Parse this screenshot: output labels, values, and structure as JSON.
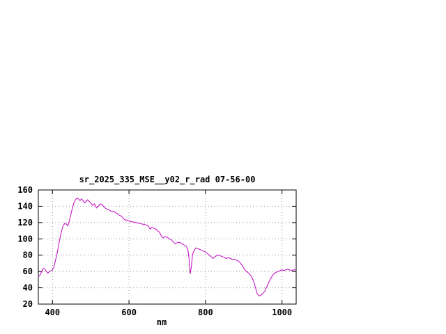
{
  "chart_data": {
    "type": "line",
    "title": "sr_2025_335_MSE__y02_r_rad 07-56-00",
    "xlabel": "nm",
    "ylabel": "",
    "xlim": [
      363,
      1037
    ],
    "ylim": [
      20,
      160
    ],
    "xticks": [
      400,
      600,
      800,
      1000
    ],
    "yticks": [
      20,
      40,
      60,
      80,
      100,
      120,
      140,
      160
    ],
    "grid": true,
    "legend": "none",
    "series_color": "#c000c0",
    "grid_color": "#9a9a9a",
    "axis_color": "#000000",
    "background_color": "#ffffff",
    "points": [
      [
        365,
        54
      ],
      [
        368,
        56
      ],
      [
        372,
        60
      ],
      [
        376,
        64
      ],
      [
        380,
        63
      ],
      [
        384,
        60
      ],
      [
        388,
        58
      ],
      [
        392,
        60
      ],
      [
        396,
        61
      ],
      [
        400,
        62
      ],
      [
        404,
        66
      ],
      [
        408,
        74
      ],
      [
        412,
        82
      ],
      [
        416,
        92
      ],
      [
        420,
        102
      ],
      [
        424,
        110
      ],
      [
        428,
        116
      ],
      [
        432,
        119
      ],
      [
        436,
        118
      ],
      [
        440,
        116
      ],
      [
        444,
        122
      ],
      [
        448,
        130
      ],
      [
        452,
        138
      ],
      [
        456,
        144
      ],
      [
        460,
        148
      ],
      [
        464,
        150
      ],
      [
        468,
        149
      ],
      [
        472,
        147
      ],
      [
        476,
        149
      ],
      [
        480,
        147
      ],
      [
        484,
        144
      ],
      [
        488,
        146
      ],
      [
        492,
        148
      ],
      [
        496,
        146
      ],
      [
        500,
        144
      ],
      [
        505,
        141
      ],
      [
        510,
        143
      ],
      [
        515,
        138
      ],
      [
        520,
        140
      ],
      [
        525,
        143
      ],
      [
        530,
        142
      ],
      [
        535,
        139
      ],
      [
        540,
        137
      ],
      [
        545,
        136
      ],
      [
        550,
        135
      ],
      [
        555,
        133
      ],
      [
        560,
        134
      ],
      [
        565,
        132
      ],
      [
        570,
        131
      ],
      [
        575,
        129
      ],
      [
        580,
        128
      ],
      [
        585,
        125
      ],
      [
        590,
        123
      ],
      [
        595,
        123
      ],
      [
        600,
        122
      ],
      [
        605,
        121
      ],
      [
        610,
        121
      ],
      [
        615,
        120
      ],
      [
        620,
        120
      ],
      [
        625,
        119
      ],
      [
        630,
        119
      ],
      [
        635,
        118
      ],
      [
        640,
        118
      ],
      [
        645,
        117
      ],
      [
        650,
        116
      ],
      [
        655,
        112
      ],
      [
        660,
        114
      ],
      [
        665,
        113
      ],
      [
        670,
        112
      ],
      [
        675,
        110
      ],
      [
        680,
        108
      ],
      [
        685,
        103
      ],
      [
        690,
        101
      ],
      [
        695,
        103
      ],
      [
        700,
        102
      ],
      [
        705,
        100
      ],
      [
        710,
        99
      ],
      [
        715,
        97
      ],
      [
        720,
        94
      ],
      [
        725,
        95
      ],
      [
        730,
        96
      ],
      [
        735,
        95
      ],
      [
        740,
        94
      ],
      [
        745,
        92
      ],
      [
        750,
        91
      ],
      [
        754,
        87
      ],
      [
        757,
        76
      ],
      [
        760,
        57
      ],
      [
        763,
        66
      ],
      [
        766,
        80
      ],
      [
        770,
        86
      ],
      [
        775,
        89
      ],
      [
        780,
        88
      ],
      [
        785,
        87
      ],
      [
        790,
        86
      ],
      [
        795,
        85
      ],
      [
        800,
        84
      ],
      [
        805,
        82
      ],
      [
        810,
        80
      ],
      [
        815,
        78
      ],
      [
        820,
        76
      ],
      [
        825,
        78
      ],
      [
        830,
        80
      ],
      [
        835,
        80
      ],
      [
        840,
        79
      ],
      [
        845,
        78
      ],
      [
        850,
        77
      ],
      [
        855,
        76
      ],
      [
        860,
        77
      ],
      [
        865,
        76
      ],
      [
        870,
        75
      ],
      [
        875,
        75
      ],
      [
        880,
        74
      ],
      [
        885,
        73
      ],
      [
        890,
        71
      ],
      [
        895,
        68
      ],
      [
        900,
        64
      ],
      [
        905,
        61
      ],
      [
        910,
        59
      ],
      [
        915,
        57
      ],
      [
        920,
        54
      ],
      [
        925,
        49
      ],
      [
        930,
        41
      ],
      [
        935,
        33
      ],
      [
        940,
        30
      ],
      [
        945,
        31
      ],
      [
        950,
        33
      ],
      [
        955,
        36
      ],
      [
        960,
        41
      ],
      [
        965,
        46
      ],
      [
        970,
        51
      ],
      [
        975,
        55
      ],
      [
        980,
        58
      ],
      [
        985,
        59
      ],
      [
        990,
        60
      ],
      [
        995,
        61
      ],
      [
        1000,
        62
      ],
      [
        1005,
        61
      ],
      [
        1010,
        62
      ],
      [
        1015,
        63
      ],
      [
        1020,
        62
      ],
      [
        1025,
        61
      ],
      [
        1030,
        62
      ],
      [
        1035,
        62
      ]
    ]
  }
}
